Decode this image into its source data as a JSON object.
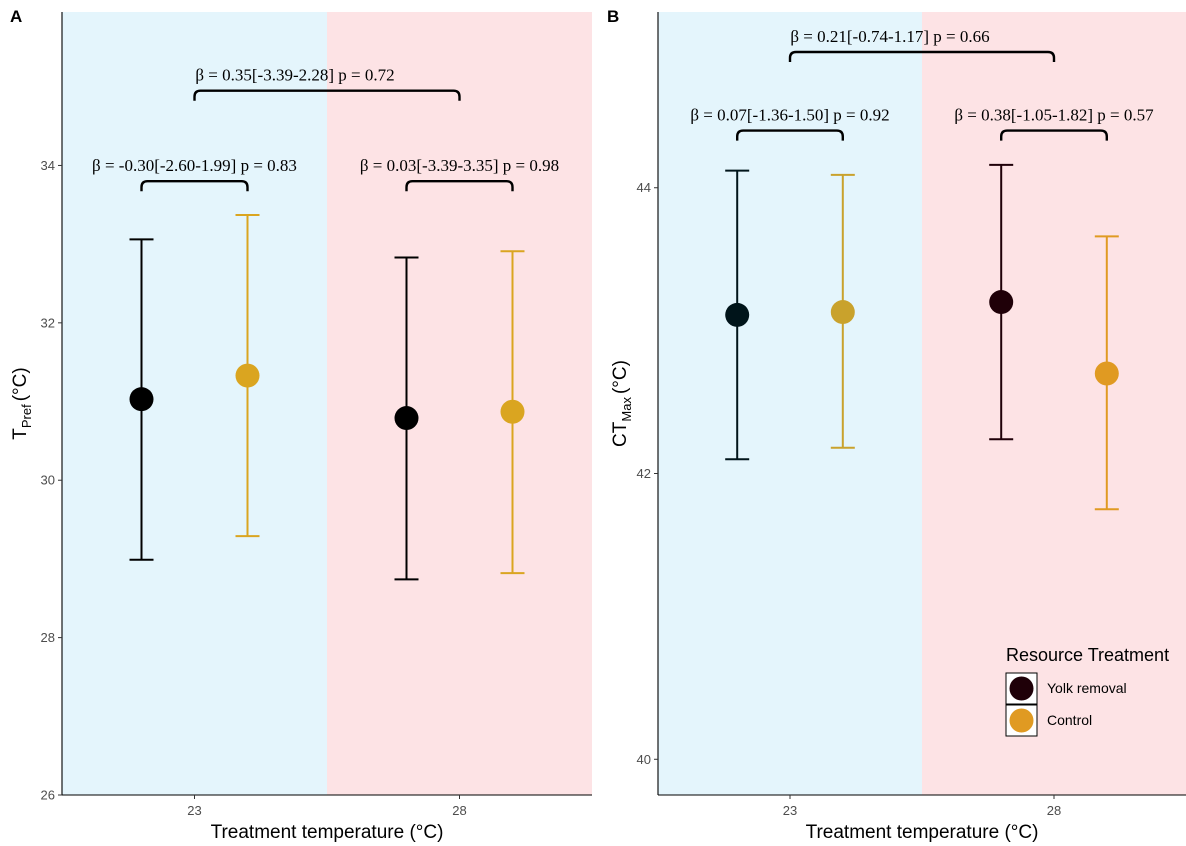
{
  "chart_data": [
    {
      "panel": "A",
      "type": "scatter",
      "categories": [
        "23",
        "28"
      ],
      "xlabel": "Treatment temperature (°C)",
      "ylabel": "T",
      "ylabel_sub": "Pref",
      "ylabel_unit": "(°C)",
      "ylim": [
        26,
        35.95
      ],
      "yticks": [
        26,
        28,
        30,
        32,
        34
      ],
      "grid": false,
      "background_bands": [
        {
          "category": "23",
          "color": "#E4F5FC"
        },
        {
          "category": "28",
          "color": "#FDE3E5"
        }
      ],
      "series": [
        {
          "name": "Yolk removal",
          "points": [
            {
              "x": "23",
              "y": 31.03,
              "low": 28.99,
              "high": 33.06,
              "color": "#000000"
            },
            {
              "x": "28",
              "y": 30.79,
              "low": 28.74,
              "high": 32.83,
              "color": "#000000"
            }
          ]
        },
        {
          "name": "Control",
          "points": [
            {
              "x": "23",
              "y": 31.33,
              "low": 29.29,
              "high": 33.37,
              "color": "#DAA520"
            },
            {
              "x": "28",
              "y": 30.87,
              "low": 28.82,
              "high": 32.91,
              "color": "#DAA520"
            }
          ]
        }
      ],
      "annotations": [
        {
          "text": "β = -0.30[-2.60-1.99] p = 0.83",
          "from": "23-Yolk removal",
          "to": "23-Control",
          "y": 33.8
        },
        {
          "text": "β = 0.03[-3.39-3.35] p = 0.98",
          "from": "28-Yolk removal",
          "to": "28-Control",
          "y": 33.8
        },
        {
          "text": "β = 0.35[-3.39-2.28] p = 0.72",
          "from": "23",
          "to": "28",
          "y": 34.95
        }
      ]
    },
    {
      "panel": "B",
      "type": "scatter",
      "categories": [
        "23",
        "28"
      ],
      "xlabel": "Treatment temperature (°C)",
      "ylabel": "CT",
      "ylabel_sub": "Max",
      "ylabel_unit": "(°C)",
      "ylim": [
        39.75,
        45.23
      ],
      "yticks": [
        40,
        42,
        44
      ],
      "grid": false,
      "background_bands": [
        {
          "category": "23",
          "color": "#E4F5FC"
        },
        {
          "category": "28",
          "color": "#FDE3E5"
        }
      ],
      "series": [
        {
          "name": "Yolk removal",
          "points": [
            {
              "x": "23",
              "y": 43.11,
              "low": 42.1,
              "high": 44.12,
              "color": "#00141A"
            },
            {
              "x": "28",
              "y": 43.2,
              "low": 42.24,
              "high": 44.16,
              "color": "#1F0008"
            }
          ]
        },
        {
          "name": "Control",
          "points": [
            {
              "x": "23",
              "y": 43.13,
              "low": 42.18,
              "high": 44.09,
              "color": "#C9A22C"
            },
            {
              "x": "28",
              "y": 42.7,
              "low": 41.75,
              "high": 43.66,
              "color": "#E09A22"
            }
          ]
        }
      ],
      "annotations": [
        {
          "text": "β = 0.07[-1.36-1.50] p = 0.92",
          "from": "23-Yolk removal",
          "to": "23-Control",
          "y": 44.4
        },
        {
          "text": "β = 0.38[-1.05-1.82] p = 0.57",
          "from": "28-Yolk removal",
          "to": "28-Control",
          "y": 44.4
        },
        {
          "text": "β = 0.21[-0.74-1.17] p = 0.66",
          "from": "23",
          "to": "28",
          "y": 44.95
        }
      ],
      "legend": {
        "title": "Resource Treatment",
        "placement": "bottom-right",
        "items": [
          {
            "label": "Yolk removal",
            "color": "#1F0008"
          },
          {
            "label": "Control",
            "color": "#E09A22"
          }
        ]
      }
    }
  ]
}
